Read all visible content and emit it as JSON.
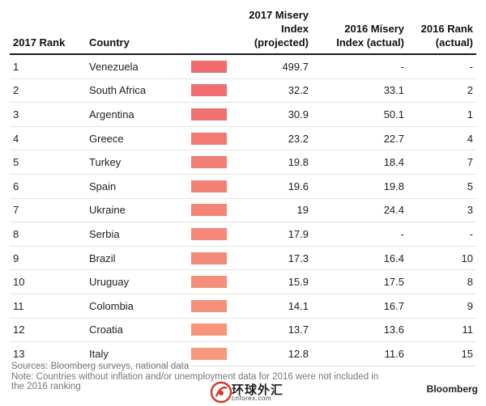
{
  "headers": {
    "rank2017": "2017 Rank",
    "country": "Country",
    "misery2017": [
      "2017 Misery Index",
      "(projected)"
    ],
    "misery2016": [
      "2016 Misery",
      "Index (actual)"
    ],
    "rank2016": [
      "2016 Rank",
      "(actual)"
    ]
  },
  "rows": [
    {
      "rank": "1",
      "country": "Venezuela",
      "index2017": "499.7",
      "index2016": "-",
      "rank2016": "-",
      "color": "#f06b6e"
    },
    {
      "rank": "2",
      "country": "South Africa",
      "index2017": "32.2",
      "index2016": "33.1",
      "rank2016": "2",
      "color": "#f06e70"
    },
    {
      "rank": "3",
      "country": "Argentina",
      "index2017": "30.9",
      "index2016": "50.1",
      "rank2016": "1",
      "color": "#f07172"
    },
    {
      "rank": "4",
      "country": "Greece",
      "index2017": "23.2",
      "index2016": "22.7",
      "rank2016": "4",
      "color": "#f17a74"
    },
    {
      "rank": "5",
      "country": "Turkey",
      "index2017": "19.8",
      "index2016": "18.4",
      "rank2016": "7",
      "color": "#f27e75"
    },
    {
      "rank": "6",
      "country": "Spain",
      "index2017": "19.6",
      "index2016": "19.8",
      "rank2016": "5",
      "color": "#f28176"
    },
    {
      "rank": "7",
      "country": "Ukraine",
      "index2017": "19",
      "index2016": "24.4",
      "rank2016": "3",
      "color": "#f38477"
    },
    {
      "rank": "8",
      "country": "Serbia",
      "index2017": "17.9",
      "index2016": "-",
      "rank2016": "-",
      "color": "#f38778"
    },
    {
      "rank": "9",
      "country": "Brazil",
      "index2017": "17.3",
      "index2016": "16.4",
      "rank2016": "10",
      "color": "#f48a79"
    },
    {
      "rank": "10",
      "country": "Uruguay",
      "index2017": "15.9",
      "index2016": "17.5",
      "rank2016": "8",
      "color": "#f58e7a"
    },
    {
      "rank": "11",
      "country": "Colombia",
      "index2017": "14.1",
      "index2016": "16.7",
      "rank2016": "9",
      "color": "#f5917b"
    },
    {
      "rank": "12",
      "country": "Croatia",
      "index2017": "13.7",
      "index2016": "13.6",
      "rank2016": "11",
      "color": "#f6947c"
    },
    {
      "rank": "13",
      "country": "Italy",
      "index2017": "12.8",
      "index2016": "11.6",
      "rank2016": "15",
      "color": "#f7977d"
    }
  ],
  "footer": {
    "sources": "Sources: Bloomberg surveys, national data",
    "note_line1": "Note: Countries without inflation and/or unemployment data for 2016 were not included in",
    "note_line2": "the 2016 ranking",
    "brand": "Bloomberg"
  },
  "watermark": {
    "cn_text": "环球外汇",
    "url": "cnforex.com"
  }
}
